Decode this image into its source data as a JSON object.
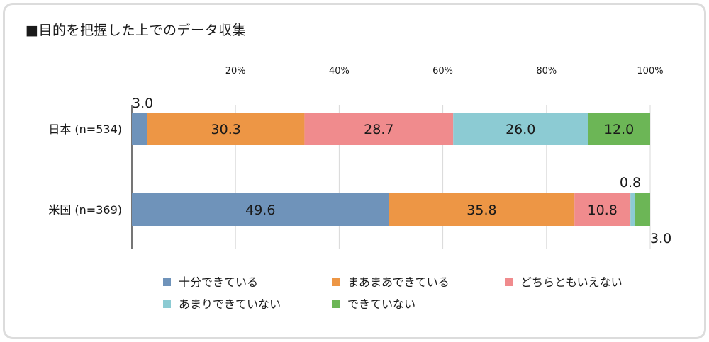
{
  "title": "■目的を把握した上でのデータ収集",
  "chart_data": {
    "type": "bar",
    "orientation": "horizontal",
    "stacked": "percent",
    "categories": [
      "日本 (n=534)",
      "米国 (n=369)"
    ],
    "series": [
      {
        "name": "十分できている",
        "color": "#6f93ba",
        "values": [
          3.0,
          49.6
        ]
      },
      {
        "name": "まあまあできている",
        "color": "#ed9645",
        "values": [
          30.3,
          35.8
        ]
      },
      {
        "name": "どちらともいえない",
        "color": "#f08b8d",
        "values": [
          28.7,
          10.8
        ]
      },
      {
        "name": "あまりできていない",
        "color": "#8ccbd3",
        "values": [
          26.0,
          0.8
        ]
      },
      {
        "name": "できていない",
        "color": "#6cb656",
        "values": [
          12.0,
          3.0
        ]
      }
    ],
    "xlim": [
      0,
      100
    ],
    "xticks": [
      "20%",
      "40%",
      "60%",
      "80%",
      "100%"
    ],
    "grid": true,
    "legend_position": "bottom"
  }
}
